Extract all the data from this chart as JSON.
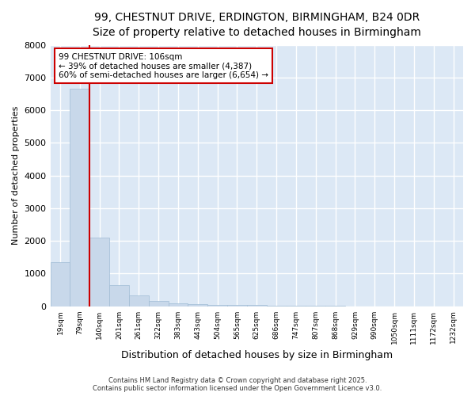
{
  "title_line1": "99, CHESTNUT DRIVE, ERDINGTON, BIRMINGHAM, B24 0DR",
  "title_line2": "Size of property relative to detached houses in Birmingham",
  "xlabel": "Distribution of detached houses by size in Birmingham",
  "ylabel": "Number of detached properties",
  "footer_line1": "Contains HM Land Registry data © Crown copyright and database right 2025.",
  "footer_line2": "Contains public sector information licensed under the Open Government Licence v3.0.",
  "annotation_title": "99 CHESTNUT DRIVE: 106sqm",
  "annotation_line1": "← 39% of detached houses are smaller (4,387)",
  "annotation_line2": "60% of semi-detached houses are larger (6,654) →",
  "bar_color": "#c8d8ea",
  "bar_edge_color": "#a0bcd4",
  "annotation_box_color": "#ffffff",
  "annotation_box_edge": "#cc0000",
  "vline_color": "#cc0000",
  "categories": [
    "19sqm",
    "79sqm",
    "140sqm",
    "201sqm",
    "261sqm",
    "322sqm",
    "383sqm",
    "443sqm",
    "504sqm",
    "565sqm",
    "625sqm",
    "686sqm",
    "747sqm",
    "807sqm",
    "868sqm",
    "929sqm",
    "990sqm",
    "1050sqm",
    "1111sqm",
    "1172sqm",
    "1232sqm"
  ],
  "bar_heights": [
    1350,
    6650,
    2100,
    650,
    320,
    170,
    85,
    70,
    50,
    45,
    40,
    10,
    8,
    6,
    5,
    4,
    3,
    3,
    2,
    2,
    1
  ],
  "ylim": [
    0,
    8000
  ],
  "yticks": [
    0,
    1000,
    2000,
    3000,
    4000,
    5000,
    6000,
    7000,
    8000
  ],
  "figure_bg": "#ffffff",
  "plot_bg": "#dce8f5",
  "grid_color": "#ffffff",
  "vline_x": 1.5,
  "title1_fontsize": 10,
  "title2_fontsize": 9
}
